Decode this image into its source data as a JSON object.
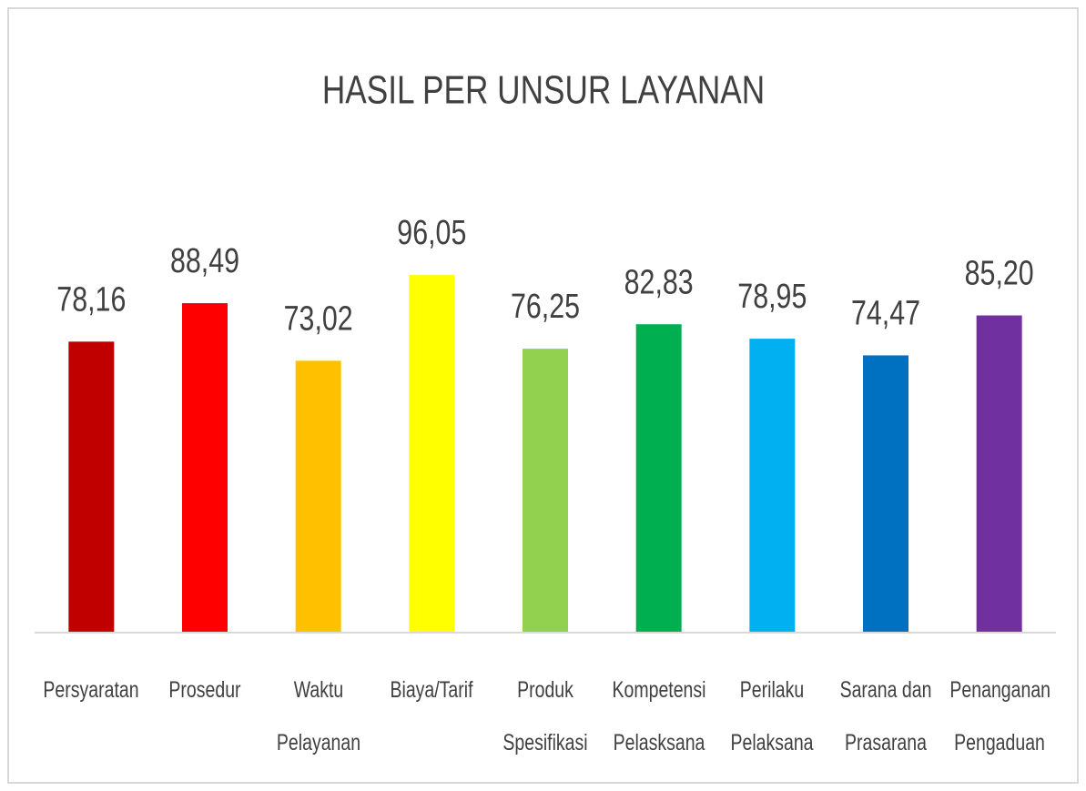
{
  "chart_data": {
    "type": "bar",
    "title": "HASIL PER UNSUR LAYANAN",
    "categories": [
      "Persyaratan",
      "Prosedur",
      "Waktu\nPelayanan",
      "Biaya/Tarif",
      "Produk\nSpesifikasi",
      "Kompetensi\nPelasksana",
      "Perilaku\nPelaksana",
      "Sarana dan\nPrasarana",
      "Penanganan\nPengaduan"
    ],
    "values": [
      78.16,
      88.49,
      73.02,
      96.05,
      76.25,
      82.83,
      78.95,
      74.47,
      85.2
    ],
    "value_labels": [
      "78,16",
      "88,49",
      "73,02",
      "96,05",
      "76,25",
      "82,83",
      "78,95",
      "74,47",
      "85,20"
    ],
    "colors": [
      "#c00000",
      "#ff0000",
      "#ffc000",
      "#ffff00",
      "#92d050",
      "#00b050",
      "#00b0f0",
      "#0070c0",
      "#7030a0"
    ],
    "ylim": [
      0,
      100
    ]
  }
}
